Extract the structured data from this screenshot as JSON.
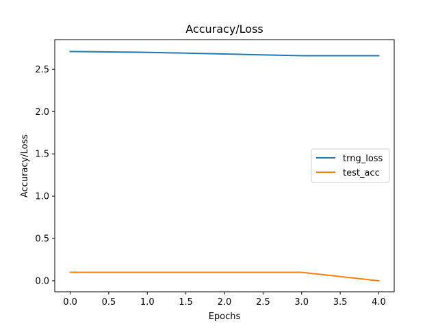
{
  "chart_data": {
    "type": "line",
    "title": "Accuracy/Loss",
    "xlabel": "Epochs",
    "ylabel": "Accuracy/Loss",
    "x": [
      0,
      1,
      2,
      3,
      4
    ],
    "xticks": [
      0.0,
      0.5,
      1.0,
      1.5,
      2.0,
      2.5,
      3.0,
      3.5,
      4.0
    ],
    "xtick_labels": [
      "0.0",
      "0.5",
      "1.0",
      "1.5",
      "2.0",
      "2.5",
      "3.0",
      "3.5",
      "4.0"
    ],
    "yticks": [
      0.0,
      0.5,
      1.0,
      1.5,
      2.0,
      2.5
    ],
    "ytick_labels": [
      "0.0",
      "0.5",
      "1.0",
      "1.5",
      "2.0",
      "2.5"
    ],
    "xlim": [
      -0.2,
      4.2
    ],
    "ylim": [
      -0.13,
      2.85
    ],
    "grid": false,
    "legend_position": "center-right",
    "series": [
      {
        "name": "trng_loss",
        "color": "#1f77b4",
        "values": [
          2.71,
          2.7,
          2.68,
          2.66,
          2.66
        ]
      },
      {
        "name": "test_acc",
        "color": "#ff7f0e",
        "values": [
          0.1,
          0.1,
          0.1,
          0.1,
          0.0
        ]
      }
    ]
  }
}
